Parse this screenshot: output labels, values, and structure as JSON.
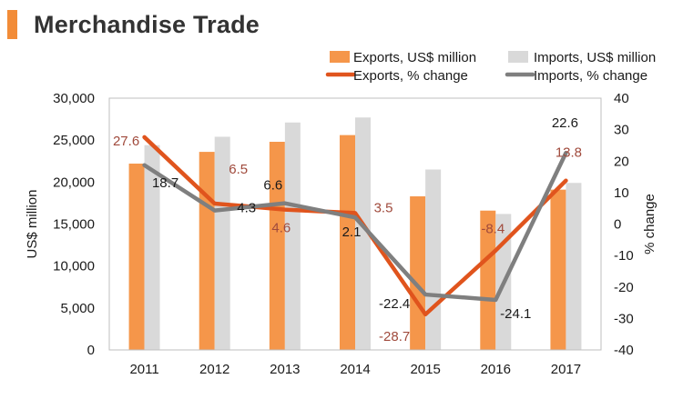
{
  "header": {
    "title": "Merchandise Trade"
  },
  "colors": {
    "exports_bar": "#f5964a",
    "imports_bar": "#d9d9d9",
    "exports_line": "#e0541d",
    "imports_line": "#7f7f7f",
    "exports_label": "#a04a3c",
    "imports_label": "#1a1a1a",
    "accent": "#f28c38"
  },
  "chart_data": {
    "type": "bar",
    "title": "Merchandise Trade",
    "categories": [
      "2011",
      "2012",
      "2013",
      "2014",
      "2015",
      "2016",
      "2017"
    ],
    "series": [
      {
        "name": "Exports, US$ million",
        "type": "bar",
        "axis": "left",
        "values": [
          22200,
          23600,
          24800,
          25600,
          18300,
          16600,
          19100
        ]
      },
      {
        "name": "Imports, US$ million",
        "type": "bar",
        "axis": "left",
        "values": [
          24400,
          25400,
          27100,
          27700,
          21500,
          16200,
          19900
        ]
      },
      {
        "name": "Exports, % change",
        "type": "line",
        "axis": "right",
        "values": [
          27.6,
          6.5,
          4.6,
          3.5,
          -28.7,
          -8.4,
          13.8
        ],
        "labels": [
          "27.6",
          "6.5",
          "4.6",
          "3.5",
          "-28.7",
          "-8.4",
          "13.8"
        ]
      },
      {
        "name": "Imports, % change",
        "type": "line",
        "axis": "right",
        "values": [
          18.7,
          4.3,
          6.6,
          2.1,
          -22.4,
          -24.1,
          22.6
        ],
        "labels": [
          "18.7",
          "4.3",
          "6.6",
          "2.1",
          "-22.4",
          "-24.1",
          "22.6"
        ]
      }
    ],
    "ylabel": "US$ million",
    "ylim": [
      0,
      30000
    ],
    "yticks": [
      "0",
      "5,000",
      "10,000",
      "15,000",
      "20,000",
      "25,000",
      "30,000"
    ],
    "ytick_values": [
      0,
      5000,
      10000,
      15000,
      20000,
      25000,
      30000
    ],
    "y2label": "% change",
    "y2lim": [
      -40,
      40
    ],
    "y2ticks": [
      "-40",
      "-30",
      "-20",
      "-10",
      "0",
      "10",
      "20",
      "30",
      "40"
    ],
    "y2tick_values": [
      -40,
      -30,
      -20,
      -10,
      0,
      10,
      20,
      30,
      40
    ],
    "legend": {
      "placement": "top-right",
      "items": [
        "Exports, US$ million",
        "Imports, US$ million",
        "Exports, % change",
        "Imports, % change"
      ]
    },
    "grid": false
  }
}
